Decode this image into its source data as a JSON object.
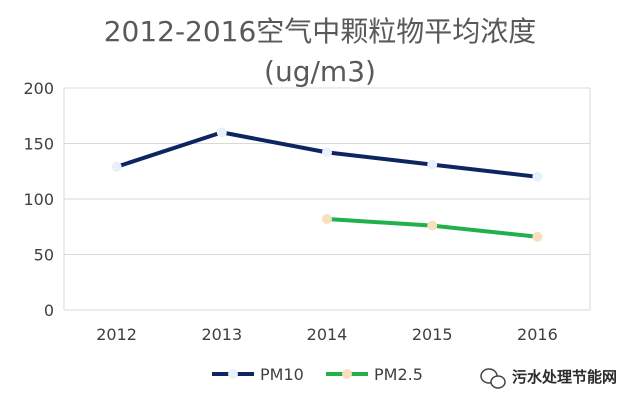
{
  "chart_data": {
    "type": "line",
    "title": "2012-2016空气中颗粒物平均浓度",
    "subtitle": "(ug/m3)",
    "x": [
      "2012",
      "2013",
      "2014",
      "2015",
      "2016"
    ],
    "ylim": [
      0,
      200
    ],
    "yticks": [
      0,
      50,
      100,
      150,
      200
    ],
    "grid": true,
    "legend_position": "bottom",
    "series": [
      {
        "name": "PM10",
        "values": [
          129,
          160,
          142,
          131,
          120
        ],
        "color": "#0d2560",
        "marker_color": "#e8f0fa"
      },
      {
        "name": "PM2.5",
        "values": [
          null,
          null,
          82,
          76,
          66
        ],
        "color": "#21b04b",
        "marker_color": "#f9dfbd"
      }
    ]
  },
  "watermark": {
    "text": "污水处理节能网",
    "icon": "wechat-icon"
  }
}
